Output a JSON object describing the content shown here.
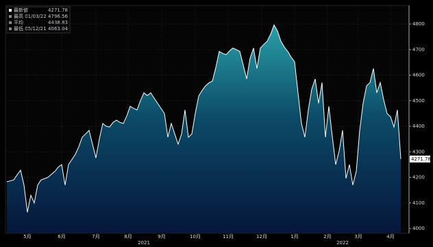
{
  "chart_data": {
    "type": "area",
    "legend": [
      {
        "label": "最新値",
        "value": 4271.78
      },
      {
        "label": "最高 01/03/22",
        "value": 4796.56
      },
      {
        "label": "平均",
        "value": 4438.83
      },
      {
        "label": "最低 05/12/21",
        "value": 4063.04
      }
    ],
    "categories": [
      null,
      null,
      null,
      null,
      null,
      null,
      null,
      null,
      null,
      null,
      null,
      null,
      null,
      null,
      null,
      null,
      null,
      null,
      null,
      null,
      null,
      null,
      null,
      null,
      null,
      null,
      null,
      null,
      null,
      null,
      null,
      null,
      null,
      null,
      null,
      null,
      null,
      null,
      null,
      null,
      null,
      null,
      null,
      null,
      null,
      null,
      null,
      null,
      null,
      null,
      null,
      null,
      null,
      null,
      null,
      null,
      null,
      null,
      null,
      null,
      null,
      null,
      null,
      null,
      null,
      null,
      null,
      null,
      null,
      null,
      null,
      null,
      null,
      null,
      null,
      null,
      null,
      null,
      null,
      null,
      null,
      null,
      null,
      null,
      null,
      null,
      null,
      null,
      null,
      null,
      null,
      null,
      null,
      null,
      null,
      null,
      null,
      null,
      null,
      null,
      null,
      null,
      null,
      null,
      null,
      null,
      null,
      null,
      null,
      null,
      null,
      null,
      null,
      null,
      null,
      null
    ],
    "series": [
      {
        "color": "#ffffff",
        "values": [
          4183,
          4186,
          4190,
          4210,
          4228,
          4170,
          4063.04,
          4130,
          4100,
          4170,
          4190,
          4195,
          4200,
          4212,
          4223,
          4240,
          4250,
          4170,
          4250,
          4270,
          4290,
          4320,
          4357,
          4370,
          4384,
          4330,
          4276,
          4350,
          4411,
          4400,
          4397,
          4415,
          4424,
          4415,
          4411,
          4440,
          4478,
          4470,
          4464,
          4500,
          4531,
          4520,
          4531,
          4510,
          4490,
          4470,
          4450,
          4357,
          4411,
          4370,
          4330,
          4370,
          4464,
          4357,
          4370,
          4450,
          4518,
          4540,
          4558,
          4570,
          4577,
          4630,
          4693,
          4685,
          4680,
          4695,
          4706,
          4700,
          4693,
          4640,
          4585,
          4666,
          4706,
          4626,
          4706,
          4720,
          4733,
          4760,
          4796.56,
          4773,
          4733,
          4710,
          4693,
          4670,
          4652,
          4530,
          4411,
          4357,
          4464,
          4545,
          4585,
          4490,
          4571,
          4357,
          4478,
          4360,
          4250,
          4303,
          4384,
          4196,
          4250,
          4170,
          4223,
          4384,
          4490,
          4558,
          4571,
          4626,
          4531,
          4571,
          4504,
          4450,
          4437,
          4397,
          4464,
          4271.78
        ]
      }
    ],
    "xlim": [
      0,
      115
    ],
    "xticks": [
      {
        "value": 6,
        "label": "5月"
      },
      {
        "value": 16,
        "label": "6月"
      },
      {
        "value": 26,
        "label": "7月"
      },
      {
        "value": 35.4,
        "label": "8月"
      },
      {
        "value": 45.2,
        "label": "9月"
      },
      {
        "value": 55,
        "label": "10月"
      },
      {
        "value": 64.6,
        "label": "11月"
      },
      {
        "value": 74.4,
        "label": "12月"
      },
      {
        "value": 84,
        "label": "1月"
      },
      {
        "value": 93.6,
        "label": "2月"
      },
      {
        "value": 102.6,
        "label": "3月"
      },
      {
        "value": 112,
        "label": "4月"
      }
    ],
    "year_labels": [
      {
        "value": 40,
        "label": "2021"
      },
      {
        "value": 98,
        "label": "2022"
      }
    ],
    "ylim": [
      4000,
      4800
    ],
    "yticks": [
      4000,
      4100,
      4200,
      4300,
      4400,
      4500,
      4600,
      4700,
      4800
    ],
    "grid": true
  }
}
